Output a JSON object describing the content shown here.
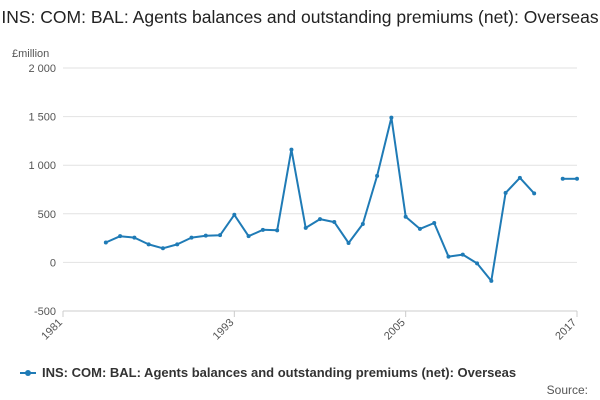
{
  "colors": {
    "series": "#1f7bb6"
  },
  "chart_data": {
    "type": "line",
    "title": "INS: COM: BAL: Agents balances and outstanding premiums (net): Overseas",
    "ylabel": "£million",
    "xlabel": "",
    "ylim": [
      -500,
      2000
    ],
    "xlim": [
      1981,
      2017
    ],
    "yticks": [
      -500,
      0,
      500,
      1000,
      1500,
      2000
    ],
    "ytick_labels": [
      "-500",
      "0",
      "500",
      "1 000",
      "1 500",
      "2 000"
    ],
    "xticks": [
      1981,
      1993,
      2005,
      2017
    ],
    "xtick_labels": [
      "1981",
      "1993",
      "2005",
      "2017"
    ],
    "grid": true,
    "legend_position": "bottom-left",
    "series": [
      {
        "name": "INS: COM: BAL: Agents balances and outstanding premiums (net): Overseas",
        "x": [
          1984,
          1985,
          1986,
          1987,
          1988,
          1989,
          1990,
          1991,
          1992,
          1993,
          1994,
          1995,
          1996,
          1997,
          1998,
          1999,
          2000,
          2001,
          2002,
          2003,
          2004,
          2005,
          2006,
          2007,
          2008,
          2009,
          2010,
          2011,
          2012,
          2013,
          2014,
          2015,
          2016,
          2017
        ],
        "y": [
          205,
          270,
          255,
          185,
          145,
          185,
          255,
          275,
          280,
          490,
          270,
          335,
          330,
          1160,
          355,
          445,
          415,
          200,
          395,
          890,
          1490,
          470,
          345,
          405,
          60,
          80,
          -10,
          -190,
          715,
          870,
          710,
          null,
          860,
          860
        ]
      }
    ]
  },
  "legend": {
    "label": "INS: COM: BAL: Agents balances and outstanding premiums (net): Overseas"
  },
  "source": {
    "label": "Source:"
  }
}
